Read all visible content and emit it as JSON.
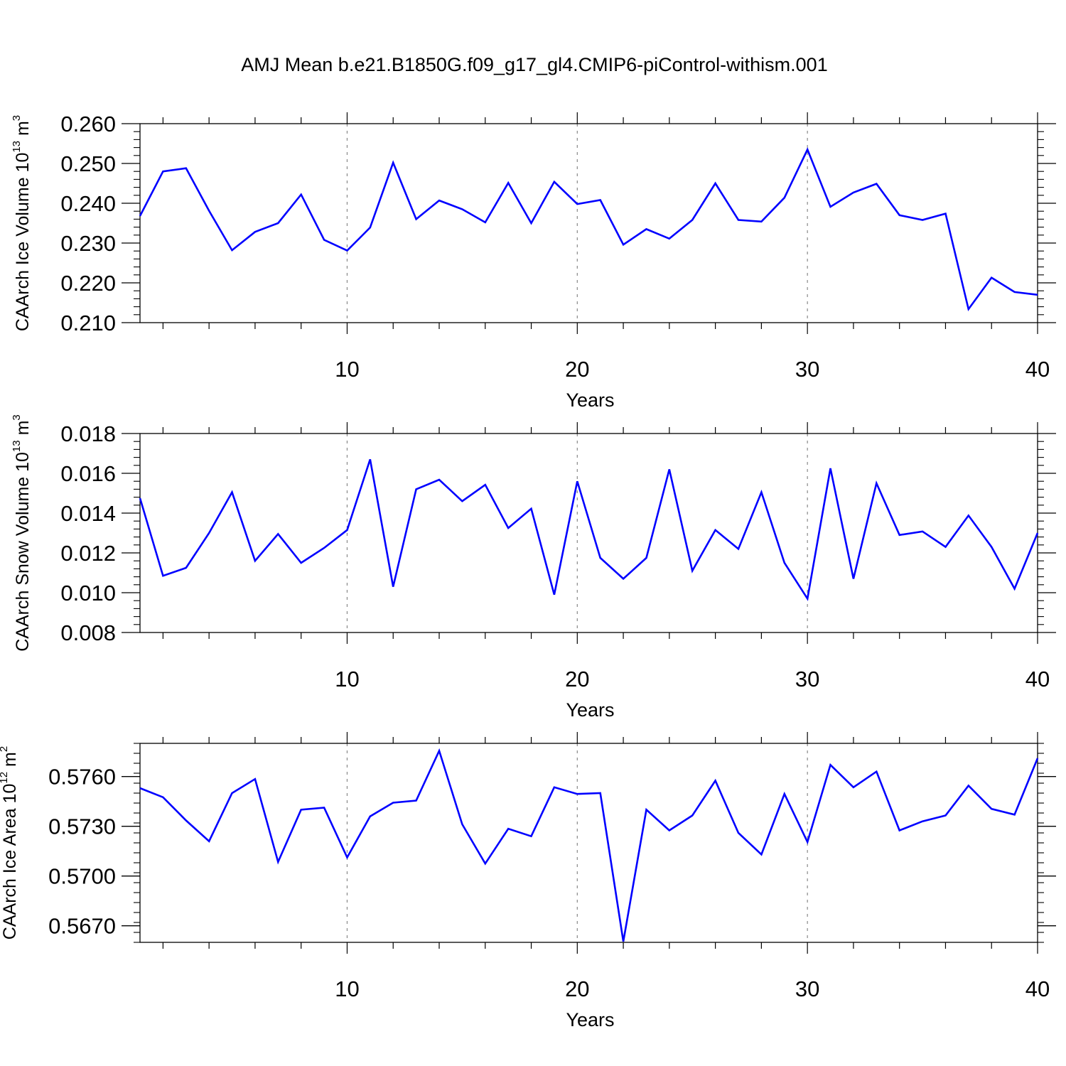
{
  "title": "AMJ Mean b.e21.B1850G.f09_g17_gl4.CMIP6-piControl-withism.001",
  "chart_data": [
    {
      "type": "line",
      "title": "",
      "xlabel": "Years",
      "ylabel_main": "CAArch Ice Volume 10",
      "ylabel_exp": "13",
      "ylabel_unit": " m",
      "ylabel_unit_exp": "3",
      "xlim": [
        1,
        40
      ],
      "ylim": [
        0.21,
        0.26
      ],
      "xticks": [
        10,
        20,
        30,
        40
      ],
      "xtick_labels": [
        "10",
        "20",
        "30",
        "40"
      ],
      "yticks": [
        0.21,
        0.22,
        0.23,
        0.24,
        0.25,
        0.26
      ],
      "ytick_labels": [
        "0.210",
        "0.220",
        "0.230",
        "0.240",
        "0.250",
        "0.260"
      ],
      "y_minor_step": 0.002,
      "color": "#0000ff",
      "grid": "vertical dashed at 10, 20, 30",
      "x": [
        1,
        2,
        3,
        4,
        5,
        6,
        7,
        8,
        9,
        10,
        11,
        12,
        13,
        14,
        15,
        16,
        17,
        18,
        19,
        20,
        21,
        22,
        23,
        24,
        25,
        26,
        27,
        28,
        29,
        30,
        31,
        32,
        33,
        34,
        35,
        36,
        37,
        38,
        39,
        40
      ],
      "values": [
        0.2368,
        0.248,
        0.2488,
        0.2381,
        0.2282,
        0.2328,
        0.235,
        0.2422,
        0.2308,
        0.2281,
        0.2339,
        0.2502,
        0.236,
        0.2407,
        0.2385,
        0.2352,
        0.2451,
        0.235,
        0.2454,
        0.2398,
        0.2408,
        0.2296,
        0.2335,
        0.2311,
        0.2358,
        0.245,
        0.2358,
        0.2354,
        0.2414,
        0.2535,
        0.2391,
        0.2427,
        0.2449,
        0.237,
        0.2358,
        0.2374,
        0.2134,
        0.2213,
        0.2177,
        0.217
      ]
    },
    {
      "type": "line",
      "title": "",
      "xlabel": "Years",
      "ylabel_main": "CAArch Snow Volume 10",
      "ylabel_exp": "13",
      "ylabel_unit": " m",
      "ylabel_unit_exp": "3",
      "xlim": [
        1,
        40
      ],
      "ylim": [
        0.008,
        0.018
      ],
      "xticks": [
        10,
        20,
        30,
        40
      ],
      "xtick_labels": [
        "10",
        "20",
        "30",
        "40"
      ],
      "yticks": [
        0.008,
        0.01,
        0.012,
        0.014,
        0.016,
        0.018
      ],
      "ytick_labels": [
        "0.008",
        "0.010",
        "0.012",
        "0.014",
        "0.016",
        "0.018"
      ],
      "y_minor_step": 0.0004,
      "color": "#0000ff",
      "grid": "vertical dashed at 10, 20, 30",
      "x": [
        1,
        2,
        3,
        4,
        5,
        6,
        7,
        8,
        9,
        10,
        11,
        12,
        13,
        14,
        15,
        16,
        17,
        18,
        19,
        20,
        21,
        22,
        23,
        24,
        25,
        26,
        27,
        28,
        29,
        30,
        31,
        32,
        33,
        34,
        35,
        36,
        37,
        38,
        39,
        40
      ],
      "values": [
        0.01475,
        0.01085,
        0.01125,
        0.013,
        0.01505,
        0.0116,
        0.01295,
        0.0115,
        0.01225,
        0.01315,
        0.0167,
        0.0103,
        0.0152,
        0.01568,
        0.0146,
        0.01542,
        0.01325,
        0.01422,
        0.0099,
        0.0156,
        0.01175,
        0.0107,
        0.01175,
        0.0162,
        0.0111,
        0.01315,
        0.0122,
        0.01505,
        0.0115,
        0.0097,
        0.01625,
        0.0107,
        0.0155,
        0.0129,
        0.01308,
        0.0123,
        0.01388,
        0.0123,
        0.0102,
        0.013
      ]
    },
    {
      "type": "line",
      "title": "",
      "xlabel": "Years",
      "ylabel_main": "CAArch Ice Area 10",
      "ylabel_exp": "12",
      "ylabel_unit": " m",
      "ylabel_unit_exp": "2",
      "xlim": [
        1,
        40
      ],
      "ylim": [
        0.566,
        0.578
      ],
      "xticks": [
        10,
        20,
        30,
        40
      ],
      "xtick_labels": [
        "10",
        "20",
        "30",
        "40"
      ],
      "yticks": [
        0.567,
        0.57,
        0.573,
        0.576
      ],
      "ytick_labels": [
        "0.5670",
        "0.5700",
        "0.5730",
        "0.5760"
      ],
      "y_minor_step": 0.0006,
      "color": "#0000ff",
      "grid": "vertical dashed at 10, 20, 30",
      "x": [
        1,
        2,
        3,
        4,
        5,
        6,
        7,
        8,
        9,
        10,
        11,
        12,
        13,
        14,
        15,
        16,
        17,
        18,
        19,
        20,
        21,
        22,
        23,
        24,
        25,
        26,
        27,
        28,
        29,
        30,
        31,
        32,
        33,
        34,
        35,
        36,
        37,
        38,
        39,
        40
      ],
      "values": [
        0.5753,
        0.57475,
        0.57335,
        0.5721,
        0.575,
        0.57585,
        0.57085,
        0.574,
        0.57412,
        0.57112,
        0.5736,
        0.57442,
        0.57455,
        0.57755,
        0.57312,
        0.57075,
        0.57285,
        0.5724,
        0.57535,
        0.57495,
        0.575,
        0.56605,
        0.574,
        0.57275,
        0.57365,
        0.57575,
        0.5726,
        0.5713,
        0.57495,
        0.57205,
        0.5767,
        0.57535,
        0.5763,
        0.57275,
        0.5733,
        0.57365,
        0.57545,
        0.57405,
        0.5737,
        0.5771
      ]
    }
  ]
}
